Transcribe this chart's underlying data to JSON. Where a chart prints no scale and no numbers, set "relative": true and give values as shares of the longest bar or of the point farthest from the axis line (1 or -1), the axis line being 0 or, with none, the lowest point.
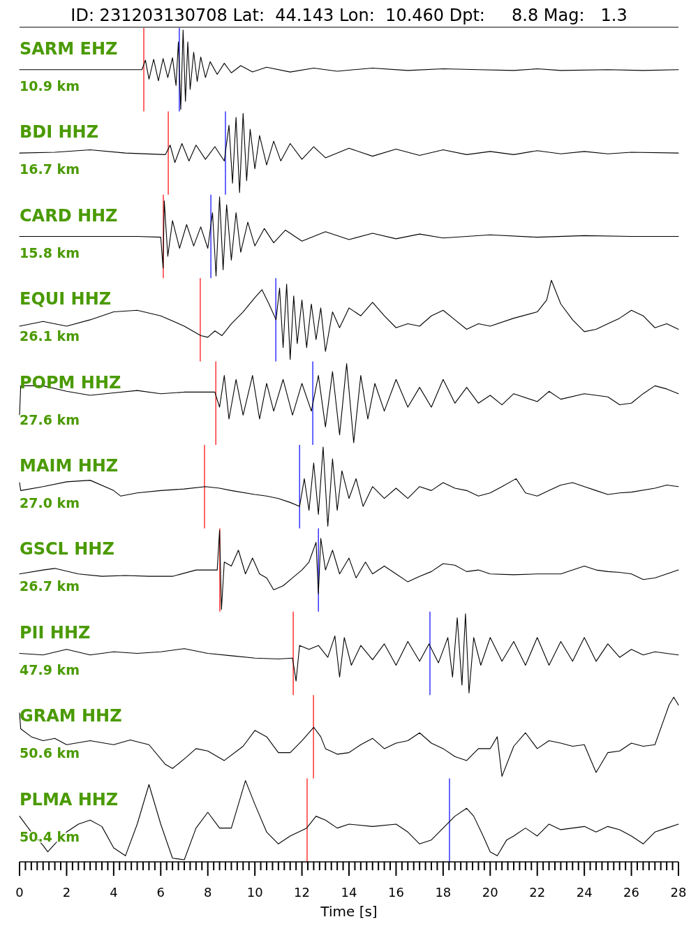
{
  "chart_data": [
    {
      "type": "other",
      "title": "ID: 231203130708 Lat:  44.143 Lon:  10.460 Dpt:     8.8 Mag:   1.3"
    },
    {
      "type": "line",
      "title": "SARM EHZ",
      "subtitle": "10.9 km",
      "relative": true,
      "xlim": [
        0,
        28
      ],
      "tick_labels": false,
      "color": "#000000",
      "ref_lines": [
        {
          "axis": "x",
          "value": 5.28,
          "color": "#ff0000"
        },
        {
          "axis": "x",
          "value": 6.79,
          "color": "#0000ff"
        }
      ],
      "x": [
        0,
        2,
        4,
        5.2,
        5.35,
        5.5,
        5.7,
        5.9,
        6.1,
        6.3,
        6.5,
        6.65,
        6.75,
        6.85,
        6.95,
        7.05,
        7.15,
        7.25,
        7.4,
        7.55,
        7.7,
        7.9,
        8.1,
        8.4,
        8.7,
        9.0,
        9.4,
        9.9,
        10.5,
        11.5,
        12.5,
        13.5,
        15,
        16.5,
        18,
        19.5,
        21,
        22,
        23,
        25,
        26.5,
        28
      ],
      "values": [
        0.5,
        0.5,
        0.5,
        0.5,
        0.62,
        0.38,
        0.63,
        0.36,
        0.64,
        0.4,
        0.65,
        0.3,
        0.85,
        0,
        1,
        0.1,
        0.85,
        0.25,
        0.72,
        0.35,
        0.66,
        0.4,
        0.6,
        0.44,
        0.58,
        0.46,
        0.55,
        0.47,
        0.53,
        0.47,
        0.52,
        0.48,
        0.52,
        0.49,
        0.51,
        0.5,
        0.49,
        0.51,
        0.49,
        0.5,
        0.49,
        0.5
      ]
    },
    {
      "type": "line",
      "title": "BDI HHZ",
      "subtitle": "16.7 km",
      "relative": true,
      "xlim": [
        0,
        28
      ],
      "tick_labels": false,
      "color": "#000000",
      "ref_lines": [
        {
          "axis": "x",
          "value": 6.32,
          "color": "#ff0000"
        },
        {
          "axis": "x",
          "value": 8.75,
          "color": "#0000ff"
        }
      ],
      "x": [
        0,
        1.5,
        3,
        4.5,
        6.2,
        6.4,
        6.6,
        6.9,
        7.2,
        7.5,
        7.9,
        8.3,
        8.7,
        8.9,
        9.05,
        9.2,
        9.35,
        9.5,
        9.65,
        9.8,
        10,
        10.2,
        10.5,
        10.8,
        11.1,
        11.5,
        12,
        12.5,
        13,
        14,
        15,
        16,
        17,
        18,
        19,
        20,
        21,
        22,
        23,
        24,
        25,
        26,
        28
      ],
      "values": [
        0.5,
        0.51,
        0.54,
        0.5,
        0.48,
        0.6,
        0.38,
        0.62,
        0.4,
        0.6,
        0.42,
        0.58,
        0.4,
        0.85,
        0.12,
        0.95,
        0,
        1,
        0.15,
        0.8,
        0.3,
        0.72,
        0.35,
        0.65,
        0.4,
        0.62,
        0.42,
        0.58,
        0.44,
        0.56,
        0.46,
        0.55,
        0.47,
        0.54,
        0.48,
        0.52,
        0.48,
        0.53,
        0.49,
        0.52,
        0.49,
        0.51,
        0.5
      ]
    },
    {
      "type": "line",
      "title": "CARD HHZ",
      "subtitle": "15.8 km",
      "relative": true,
      "xlim": [
        0,
        28
      ],
      "tick_labels": false,
      "color": "#000000",
      "ref_lines": [
        {
          "axis": "x",
          "value": 6.11,
          "color": "#ff0000"
        },
        {
          "axis": "x",
          "value": 8.13,
          "color": "#0000ff"
        }
      ],
      "x": [
        0,
        5,
        6,
        6.1,
        6.15,
        6.3,
        6.5,
        6.8,
        7.1,
        7.4,
        7.7,
        8,
        8.2,
        8.35,
        8.5,
        8.65,
        8.8,
        9,
        9.2,
        9.4,
        9.7,
        10,
        10.4,
        10.8,
        11.3,
        12,
        13,
        14,
        15,
        16,
        17,
        18,
        20,
        22,
        24,
        26,
        28
      ],
      "values": [
        0.5,
        0.5,
        0.49,
        0.1,
        0.95,
        0.25,
        0.7,
        0.35,
        0.65,
        0.38,
        0.62,
        0.35,
        0.8,
        0,
        1,
        0.08,
        0.9,
        0.2,
        0.8,
        0.3,
        0.68,
        0.38,
        0.6,
        0.42,
        0.58,
        0.44,
        0.56,
        0.46,
        0.54,
        0.47,
        0.53,
        0.48,
        0.52,
        0.49,
        0.51,
        0.5,
        0.5
      ]
    },
    {
      "type": "line",
      "title": "EQUI HHZ",
      "subtitle": "26.1 km",
      "relative": true,
      "xlim": [
        0,
        28
      ],
      "tick_labels": false,
      "color": "#000000",
      "ref_lines": [
        {
          "axis": "x",
          "value": 7.68,
          "color": "#ff0000"
        },
        {
          "axis": "x",
          "value": 10.89,
          "color": "#0000ff"
        }
      ],
      "x": [
        0,
        1,
        2,
        3,
        4,
        5,
        6,
        7,
        7.7,
        8,
        8.3,
        8.6,
        9,
        9.5,
        10,
        10.3,
        10.6,
        10.9,
        11.05,
        11.2,
        11.35,
        11.5,
        11.65,
        11.8,
        12,
        12.2,
        12.4,
        12.6,
        12.8,
        13,
        13.3,
        13.6,
        14,
        14.5,
        15,
        15.5,
        16,
        16.5,
        17,
        17.5,
        18,
        18.5,
        19,
        19.5,
        20,
        21,
        22,
        22.4,
        22.6,
        23,
        23.5,
        24,
        24.5,
        25,
        25.5,
        26,
        26.5,
        27,
        27.5,
        28
      ],
      "values": [
        0.42,
        0.48,
        0.42,
        0.5,
        0.6,
        0.62,
        0.55,
        0.42,
        0.3,
        0.28,
        0.36,
        0.3,
        0.45,
        0.6,
        0.78,
        0.88,
        0.7,
        0.5,
        0.9,
        0.15,
        0.95,
        0,
        0.8,
        0.2,
        0.75,
        0.15,
        0.7,
        0.25,
        0.65,
        0.1,
        0.6,
        0.4,
        0.65,
        0.55,
        0.72,
        0.55,
        0.4,
        0.45,
        0.42,
        0.55,
        0.62,
        0.5,
        0.38,
        0.45,
        0.42,
        0.52,
        0.6,
        0.75,
        1,
        0.7,
        0.5,
        0.35,
        0.38,
        0.45,
        0.52,
        0.62,
        0.55,
        0.4,
        0.45,
        0.38
      ]
    },
    {
      "type": "line",
      "title": "POPM HHZ",
      "subtitle": "27.6 km",
      "relative": true,
      "xlim": [
        0,
        28
      ],
      "tick_labels": false,
      "color": "#000000",
      "ref_lines": [
        {
          "axis": "x",
          "value": 8.34,
          "color": "#ff0000"
        },
        {
          "axis": "x",
          "value": 12.46,
          "color": "#0000ff"
        }
      ],
      "x": [
        0,
        0.05,
        1,
        2,
        3,
        4,
        5,
        6,
        7,
        8.3,
        8.5,
        8.7,
        8.9,
        9.2,
        9.5,
        9.9,
        10.2,
        10.5,
        10.8,
        11.2,
        11.6,
        12,
        12.4,
        12.7,
        13,
        13.3,
        13.6,
        13.9,
        14.2,
        14.5,
        14.8,
        15.1,
        15.5,
        16,
        16.5,
        17,
        17.5,
        18,
        18.5,
        19,
        19.5,
        20,
        20.5,
        21,
        22,
        22.5,
        23,
        24,
        25,
        25.5,
        26,
        26.5,
        27,
        27.5,
        28
      ],
      "values": [
        0.35,
        0.72,
        0.72,
        0.65,
        0.6,
        0.63,
        0.66,
        0.62,
        0.64,
        0.64,
        0.45,
        0.85,
        0.3,
        0.8,
        0.35,
        0.85,
        0.3,
        0.75,
        0.4,
        0.8,
        0.35,
        0.75,
        0.4,
        0.85,
        0.2,
        0.9,
        0.1,
        1,
        0,
        0.85,
        0.3,
        0.75,
        0.4,
        0.8,
        0.45,
        0.7,
        0.45,
        0.8,
        0.5,
        0.7,
        0.5,
        0.6,
        0.48,
        0.62,
        0.52,
        0.65,
        0.55,
        0.62,
        0.58,
        0.48,
        0.5,
        0.62,
        0.72,
        0.68,
        0.62
      ]
    },
    {
      "type": "line",
      "title": "MAIM HHZ",
      "subtitle": "27.0 km",
      "relative": true,
      "xlim": [
        0,
        28
      ],
      "tick_labels": false,
      "color": "#000000",
      "ref_lines": [
        {
          "axis": "x",
          "value": 7.86,
          "color": "#ff0000"
        },
        {
          "axis": "x",
          "value": 11.9,
          "color": "#0000ff"
        }
      ],
      "x": [
        0,
        0.05,
        1,
        2,
        3,
        4,
        4.3,
        5,
        6,
        7,
        7.9,
        8.5,
        9,
        10,
        10.5,
        11,
        11.5,
        11.9,
        12.1,
        12.3,
        12.5,
        12.7,
        12.9,
        13.1,
        13.3,
        13.5,
        13.7,
        14,
        14.3,
        14.6,
        15,
        15.5,
        16,
        16.5,
        17,
        17.5,
        18,
        18.5,
        19,
        19.5,
        20,
        20.5,
        21.1,
        21.5,
        22,
        22.5,
        23,
        23.5,
        24,
        24.5,
        25,
        25.5,
        26,
        27,
        27.5,
        28
      ],
      "values": [
        0.55,
        0.45,
        0.5,
        0.56,
        0.58,
        0.45,
        0.38,
        0.42,
        0.45,
        0.47,
        0.5,
        0.48,
        0.45,
        0.4,
        0.38,
        0.35,
        0.3,
        0.25,
        0.6,
        0.2,
        0.8,
        0.15,
        1,
        0,
        0.85,
        0.2,
        0.7,
        0.35,
        0.6,
        0.25,
        0.5,
        0.35,
        0.48,
        0.35,
        0.5,
        0.45,
        0.55,
        0.48,
        0.45,
        0.38,
        0.42,
        0.5,
        0.6,
        0.42,
        0.38,
        0.45,
        0.52,
        0.55,
        0.5,
        0.45,
        0.4,
        0.42,
        0.43,
        0.48,
        0.52,
        0.5
      ]
    },
    {
      "type": "line",
      "title": "GSCL HHZ",
      "subtitle": "26.7 km",
      "relative": true,
      "xlim": [
        0,
        28
      ],
      "tick_labels": false,
      "color": "#000000",
      "ref_lines": [
        {
          "axis": "x",
          "value": 8.51,
          "color": "#ff0000"
        },
        {
          "axis": "x",
          "value": 12.7,
          "color": "#0000ff"
        }
      ],
      "x": [
        0,
        1,
        1.5,
        2.5,
        3.5,
        4.5,
        5.5,
        6.5,
        7.5,
        8.4,
        8.5,
        8.58,
        8.7,
        9,
        9.3,
        9.6,
        9.9,
        10.2,
        10.5,
        10.8,
        11.2,
        11.6,
        12,
        12.3,
        12.6,
        12.7,
        12.8,
        13,
        13.3,
        13.6,
        14,
        14.3,
        14.7,
        15,
        15.5,
        16,
        16.5,
        17,
        17.5,
        18,
        18.5,
        19,
        19.5,
        20,
        21,
        22,
        23,
        24,
        24.5,
        25,
        25.5,
        26,
        26.5,
        27,
        27.5,
        28
      ],
      "values": [
        0.45,
        0.5,
        0.52,
        0.45,
        0.42,
        0.43,
        0.42,
        0.42,
        0.5,
        0.5,
        1,
        0,
        0.6,
        0.55,
        0.75,
        0.45,
        0.65,
        0.45,
        0.4,
        0.25,
        0.3,
        0.4,
        0.5,
        0.6,
        0.85,
        0.2,
        0.9,
        0.5,
        0.75,
        0.45,
        0.65,
        0.4,
        0.6,
        0.45,
        0.55,
        0.45,
        0.35,
        0.42,
        0.48,
        0.58,
        0.56,
        0.48,
        0.5,
        0.45,
        0.44,
        0.45,
        0.45,
        0.55,
        0.5,
        0.48,
        0.47,
        0.45,
        0.38,
        0.4,
        0.45,
        0.5
      ]
    },
    {
      "type": "line",
      "title": "PII HHZ",
      "subtitle": "47.9 km",
      "relative": true,
      "xlim": [
        0,
        28
      ],
      "tick_labels": false,
      "color": "#000000",
      "ref_lines": [
        {
          "axis": "x",
          "value": 11.63,
          "color": "#ff0000"
        },
        {
          "axis": "x",
          "value": 17.44,
          "color": "#0000ff"
        }
      ],
      "x": [
        0,
        1,
        2,
        3,
        4,
        5,
        6,
        7,
        8,
        9,
        10,
        11,
        11.6,
        11.75,
        11.9,
        12.3,
        12.7,
        13.1,
        13.4,
        13.6,
        13.8,
        14.1,
        14.5,
        15,
        15.5,
        16,
        16.5,
        17,
        17.4,
        17.8,
        18.2,
        18.4,
        18.6,
        18.8,
        18.95,
        19.1,
        19.3,
        19.6,
        20,
        20.5,
        21,
        21.5,
        22,
        22.5,
        23,
        23.5,
        24,
        24.5,
        25,
        25.5,
        26,
        26.5,
        27,
        27.5,
        28
      ],
      "values": [
        0.5,
        0.48,
        0.55,
        0.48,
        0.52,
        0.5,
        0.52,
        0.56,
        0.5,
        0.47,
        0.44,
        0.43,
        0.44,
        0.15,
        0.6,
        0.55,
        0.6,
        0.45,
        0.72,
        0.2,
        0.7,
        0.35,
        0.6,
        0.42,
        0.62,
        0.35,
        0.65,
        0.4,
        0.62,
        0.38,
        0.7,
        0.2,
        0.95,
        0.1,
        1,
        0,
        0.7,
        0.35,
        0.7,
        0.4,
        0.65,
        0.35,
        0.7,
        0.35,
        0.65,
        0.4,
        0.7,
        0.4,
        0.62,
        0.45,
        0.55,
        0.48,
        0.52,
        0.5,
        0.48
      ]
    },
    {
      "type": "line",
      "title": "GRAM HHZ",
      "subtitle": "50.6 km",
      "relative": true,
      "xlim": [
        0,
        28
      ],
      "tick_labels": false,
      "color": "#000000",
      "ref_lines": [
        {
          "axis": "x",
          "value": 12.49,
          "color": "#ff0000"
        }
      ],
      "x": [
        0,
        0.05,
        0.5,
        1,
        1.5,
        2,
        3,
        4,
        4.7,
        5.5,
        6.2,
        6.5,
        7,
        7.5,
        8,
        8.7,
        9.5,
        10,
        10.5,
        11,
        11.5,
        12,
        12.5,
        12.8,
        13,
        13.5,
        14,
        14.5,
        15,
        15.5,
        16,
        16.5,
        17,
        17.5,
        18,
        18.5,
        19,
        19.5,
        20,
        20.3,
        20.5,
        21,
        21.5,
        22,
        22.5,
        23,
        23.5,
        24,
        24.5,
        25,
        25.5,
        26,
        26.5,
        27,
        27.3,
        27.6,
        27.8,
        28
      ],
      "values": [
        0.8,
        0.6,
        0.5,
        0.45,
        0.48,
        0.4,
        0.45,
        0.4,
        0.46,
        0.4,
        0.15,
        0.1,
        0.22,
        0.35,
        0.32,
        0.2,
        0.38,
        0.58,
        0.5,
        0.3,
        0.3,
        0.45,
        0.62,
        0.5,
        0.35,
        0.28,
        0.3,
        0.4,
        0.48,
        0.35,
        0.42,
        0.45,
        0.55,
        0.42,
        0.35,
        0.25,
        0.2,
        0.35,
        0.35,
        0.5,
        0,
        0.38,
        0.55,
        0.35,
        0.45,
        0.42,
        0.38,
        0.4,
        0.05,
        0.3,
        0.32,
        0.42,
        0.38,
        0.4,
        0.65,
        0.9,
        1,
        0.9
      ]
    },
    {
      "type": "line",
      "title": "PLMA HHZ",
      "subtitle": "50.4 km",
      "relative": true,
      "xlim": [
        0,
        28
      ],
      "tick_labels": "x",
      "xlabel": "Time [s]",
      "color": "#000000",
      "ref_lines": [
        {
          "axis": "x",
          "value": 12.22,
          "color": "#ff0000"
        },
        {
          "axis": "x",
          "value": 18.27,
          "color": "#0000ff"
        }
      ],
      "x": [
        0,
        0.5,
        1,
        1.2,
        1.5,
        2,
        2.5,
        3,
        3.5,
        4,
        4.5,
        5,
        5.5,
        6,
        6.5,
        7,
        7.5,
        8,
        8.5,
        9,
        9.6,
        10,
        10.5,
        11,
        11.5,
        12.2,
        12.6,
        13,
        13.5,
        14,
        15,
        16,
        16.5,
        17,
        17.5,
        18,
        18.5,
        19,
        19.3,
        19.7,
        20,
        20.3,
        20.7,
        21,
        21.5,
        22,
        22.5,
        23,
        24,
        24.5,
        25,
        25.5,
        26,
        26.5,
        27,
        27.5,
        28
      ],
      "values": [
        0.55,
        0.35,
        0.18,
        0.1,
        0.2,
        0.35,
        0.45,
        0.5,
        0.42,
        0.15,
        0.05,
        0.45,
        0.95,
        0.45,
        0.02,
        0,
        0.4,
        0.6,
        0.4,
        0.4,
        1,
        0.7,
        0.35,
        0.2,
        0.3,
        0.4,
        0.55,
        0.5,
        0.4,
        0.45,
        0.42,
        0.45,
        0.35,
        0.2,
        0.25,
        0.4,
        0.55,
        0.65,
        0.55,
        0.3,
        0.1,
        0.05,
        0.25,
        0.3,
        0.4,
        0.3,
        0.45,
        0.38,
        0.42,
        0.35,
        0.42,
        0.38,
        0.3,
        0.2,
        0.35,
        0.4,
        0.45
      ],
      "xticks": [
        0,
        {
          "value": 0.25,
          "label": null
        },
        {
          "value": 0.5,
          "label": null
        },
        {
          "value": 0.75,
          "label": null
        },
        {
          "value": 1,
          "label": null
        },
        {
          "value": 1.25,
          "label": null
        },
        {
          "value": 1.5,
          "label": null
        },
        {
          "value": 1.75,
          "label": null
        },
        2,
        {
          "value": 2.25,
          "label": null
        },
        {
          "value": 2.5,
          "label": null
        },
        {
          "value": 2.75,
          "label": null
        },
        {
          "value": 3,
          "label": null
        },
        {
          "value": 3.25,
          "label": null
        },
        {
          "value": 3.5,
          "label": null
        },
        {
          "value": 3.75,
          "label": null
        },
        4,
        {
          "value": 4.25,
          "label": null
        },
        {
          "value": 4.5,
          "label": null
        },
        {
          "value": 4.75,
          "label": null
        },
        {
          "value": 5,
          "label": null
        },
        {
          "value": 5.25,
          "label": null
        },
        {
          "value": 5.5,
          "label": null
        },
        {
          "value": 5.75,
          "label": null
        },
        6,
        {
          "value": 6.25,
          "label": null
        },
        {
          "value": 6.5,
          "label": null
        },
        {
          "value": 6.75,
          "label": null
        },
        {
          "value": 7,
          "label": null
        },
        {
          "value": 7.25,
          "label": null
        },
        {
          "value": 7.5,
          "label": null
        },
        {
          "value": 7.75,
          "label": null
        },
        8,
        {
          "value": 8.25,
          "label": null
        },
        {
          "value": 8.5,
          "label": null
        },
        {
          "value": 8.75,
          "label": null
        },
        {
          "value": 9,
          "label": null
        },
        {
          "value": 9.25,
          "label": null
        },
        {
          "value": 9.5,
          "label": null
        },
        {
          "value": 9.75,
          "label": null
        },
        10,
        {
          "value": 10.25,
          "label": null
        },
        {
          "value": 10.5,
          "label": null
        },
        {
          "value": 10.75,
          "label": null
        },
        {
          "value": 11,
          "label": null
        },
        {
          "value": 11.25,
          "label": null
        },
        {
          "value": 11.5,
          "label": null
        },
        {
          "value": 11.75,
          "label": null
        },
        12,
        {
          "value": 12.25,
          "label": null
        },
        {
          "value": 12.5,
          "label": null
        },
        {
          "value": 12.75,
          "label": null
        },
        {
          "value": 13,
          "label": null
        },
        {
          "value": 13.25,
          "label": null
        },
        {
          "value": 13.5,
          "label": null
        },
        {
          "value": 13.75,
          "label": null
        },
        14,
        {
          "value": 14.25,
          "label": null
        },
        {
          "value": 14.5,
          "label": null
        },
        {
          "value": 14.75,
          "label": null
        },
        {
          "value": 15,
          "label": null
        },
        {
          "value": 15.25,
          "label": null
        },
        {
          "value": 15.5,
          "label": null
        },
        {
          "value": 15.75,
          "label": null
        },
        16,
        {
          "value": 16.25,
          "label": null
        },
        {
          "value": 16.5,
          "label": null
        },
        {
          "value": 16.75,
          "label": null
        },
        {
          "value": 17,
          "label": null
        },
        {
          "value": 17.25,
          "label": null
        },
        {
          "value": 17.5,
          "label": null
        },
        {
          "value": 17.75,
          "label": null
        },
        18,
        {
          "value": 18.25,
          "label": null
        },
        {
          "value": 18.5,
          "label": null
        },
        {
          "value": 18.75,
          "label": null
        },
        {
          "value": 19,
          "label": null
        },
        {
          "value": 19.25,
          "label": null
        },
        {
          "value": 19.5,
          "label": null
        },
        {
          "value": 19.75,
          "label": null
        },
        20,
        {
          "value": 20.25,
          "label": null
        },
        {
          "value": 20.5,
          "label": null
        },
        {
          "value": 20.75,
          "label": null
        },
        {
          "value": 21,
          "label": null
        },
        {
          "value": 21.25,
          "label": null
        },
        {
          "value": 21.5,
          "label": null
        },
        {
          "value": 21.75,
          "label": null
        },
        22,
        {
          "value": 22.25,
          "label": null
        },
        {
          "value": 22.5,
          "label": null
        },
        {
          "value": 22.75,
          "label": null
        },
        {
          "value": 23,
          "label": null
        },
        {
          "value": 23.25,
          "label": null
        },
        {
          "value": 23.5,
          "label": null
        },
        {
          "value": 23.75,
          "label": null
        },
        24,
        {
          "value": 24.25,
          "label": null
        },
        {
          "value": 24.5,
          "label": null
        },
        {
          "value": 24.75,
          "label": null
        },
        {
          "value": 25,
          "label": null
        },
        {
          "value": 25.25,
          "label": null
        },
        {
          "value": 25.5,
          "label": null
        },
        {
          "value": 25.75,
          "label": null
        },
        26,
        {
          "value": 26.25,
          "label": null
        },
        {
          "value": 26.5,
          "label": null
        },
        {
          "value": 26.75,
          "label": null
        },
        {
          "value": 27,
          "label": null
        },
        {
          "value": 27.25,
          "label": null
        },
        {
          "value": 27.5,
          "label": null
        },
        {
          "value": 27.75,
          "label": null
        },
        28
      ]
    }
  ]
}
